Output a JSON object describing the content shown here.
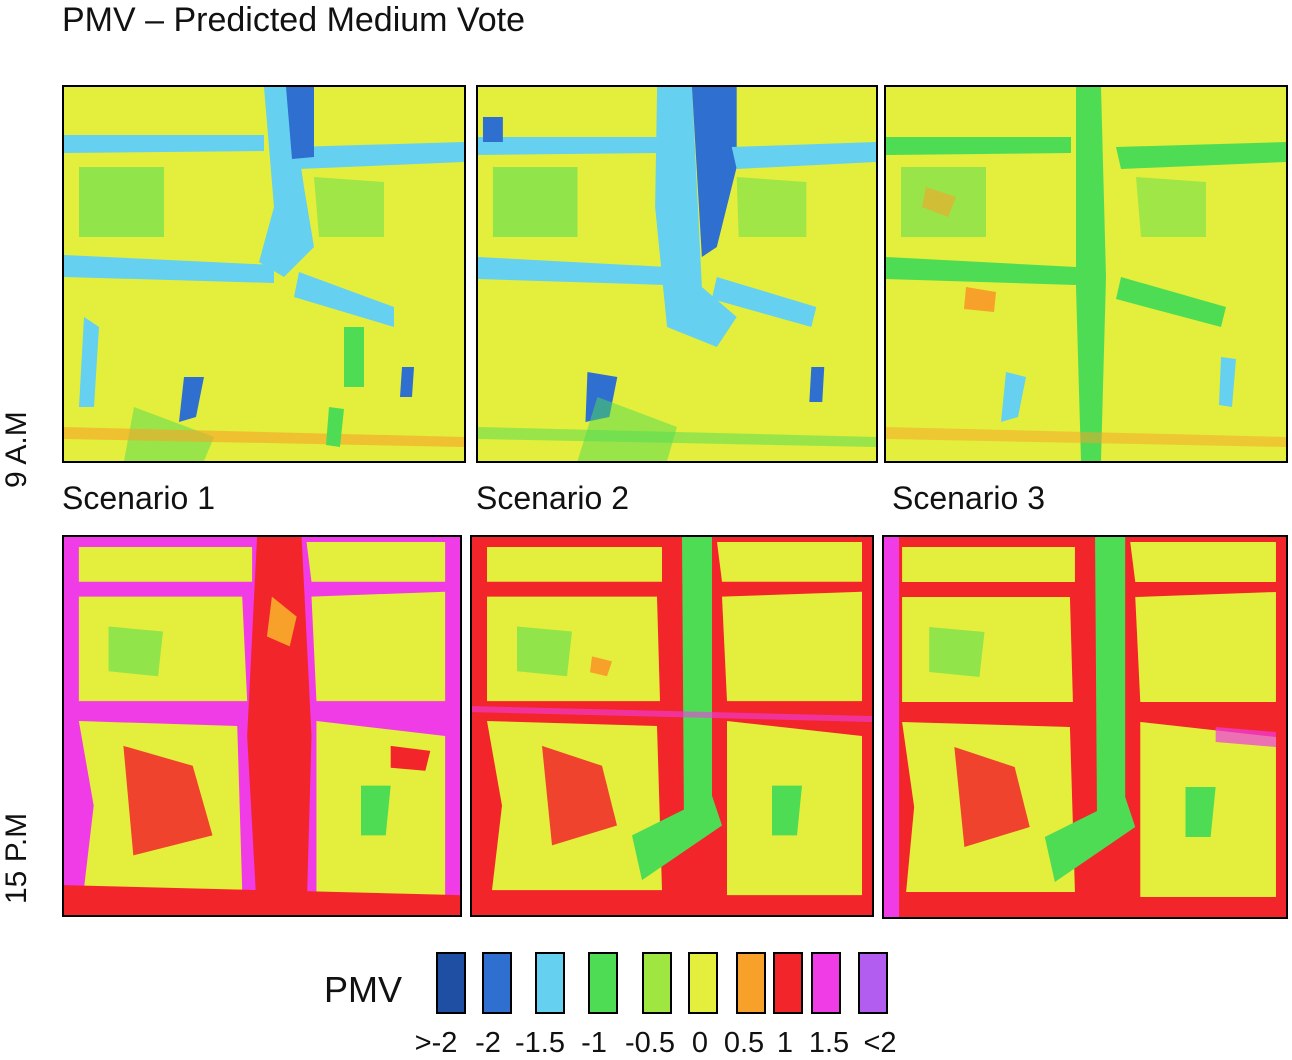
{
  "title": "PMV – Predicted Medium Vote",
  "rows": [
    {
      "label": "9 A.M"
    },
    {
      "label": "15 P.M"
    }
  ],
  "scenarios": [
    {
      "label": "Scenario 1"
    },
    {
      "label": "Scenario 2"
    },
    {
      "label": "Scenario 3"
    }
  ],
  "legend": {
    "title": "PMV",
    "items": [
      {
        "label": ">-2",
        "color": "#1f4fa3"
      },
      {
        "label": "-2",
        "color": "#2f6fd0"
      },
      {
        "label": "-1.5",
        "color": "#66d0f0"
      },
      {
        "label": "-1",
        "color": "#4fdc55"
      },
      {
        "label": "-0.5",
        "color": "#9fe640"
      },
      {
        "label": "0",
        "color": "#e3ef3c"
      },
      {
        "label": "0.5",
        "color": "#f7a12a"
      },
      {
        "label": "1",
        "color": "#f2252a"
      },
      {
        "label": "1.5",
        "color": "#f03ce6"
      },
      {
        "label": "<2",
        "color": "#b35cf0"
      }
    ]
  }
}
